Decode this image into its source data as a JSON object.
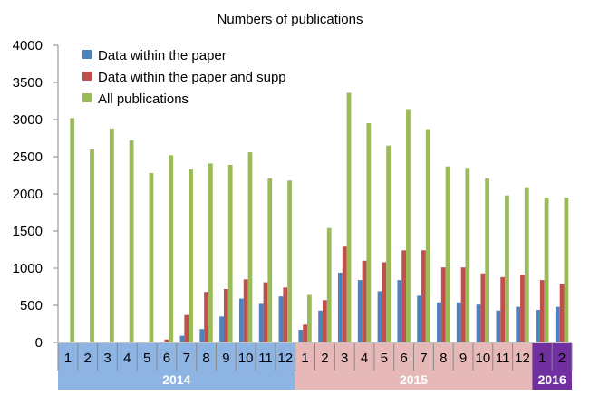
{
  "chart_data": {
    "type": "bar",
    "title": "Numbers of publications",
    "xlabel": "",
    "ylabel": "",
    "ylim": [
      0,
      4000
    ],
    "yticks": [
      0,
      500,
      1000,
      1500,
      2000,
      2500,
      3000,
      3500,
      4000
    ],
    "grid": false,
    "legend_position": "top-left",
    "categories": [
      "1",
      "2",
      "3",
      "4",
      "5",
      "6",
      "7",
      "8",
      "9",
      "10",
      "11",
      "12",
      "1",
      "2",
      "3",
      "4",
      "5",
      "6",
      "7",
      "8",
      "9",
      "10",
      "11",
      "12",
      "1",
      "2"
    ],
    "year_groups": [
      {
        "label": "2014",
        "count": 12,
        "color": "#8eb4e3"
      },
      {
        "label": "2015",
        "count": 12,
        "color": "#e6b9b8"
      },
      {
        "label": "2016",
        "count": 2,
        "color": "#7030a0"
      }
    ],
    "series": [
      {
        "name": "Data within the paper",
        "color": "#4f81bd",
        "values": [
          0,
          0,
          0,
          0,
          0,
          10,
          90,
          180,
          350,
          590,
          520,
          620,
          170,
          430,
          940,
          840,
          690,
          840,
          630,
          540,
          540,
          510,
          430,
          480,
          440,
          480
        ]
      },
      {
        "name": "Data within the paper and supp",
        "color": "#c0504d",
        "values": [
          0,
          0,
          0,
          0,
          0,
          40,
          370,
          680,
          720,
          850,
          810,
          740,
          240,
          570,
          1290,
          1100,
          1080,
          1240,
          1240,
          1010,
          1010,
          930,
          880,
          910,
          840,
          790
        ]
      },
      {
        "name": "All publications",
        "color": "#9bbb59",
        "values": [
          3020,
          2600,
          2880,
          2720,
          2280,
          2520,
          2330,
          2410,
          2390,
          2560,
          2210,
          2180,
          640,
          1540,
          3360,
          2950,
          2650,
          3140,
          2870,
          2370,
          2350,
          2210,
          1980,
          2090,
          1950,
          1950
        ]
      }
    ]
  }
}
